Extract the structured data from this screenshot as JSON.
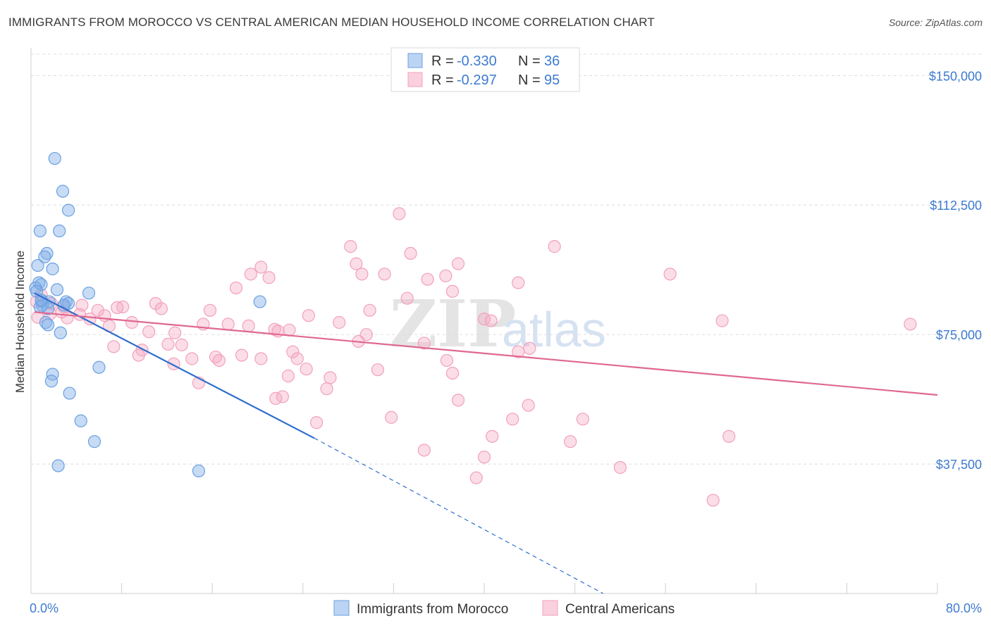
{
  "title": "IMMIGRANTS FROM MOROCCO VS CENTRAL AMERICAN MEDIAN HOUSEHOLD INCOME CORRELATION CHART",
  "source": "Source: ZipAtlas.com",
  "watermark": {
    "zip": "ZIP",
    "atlas": "atlas"
  },
  "chart_data": {
    "type": "scatter",
    "ylabel": "Median Household Income",
    "xlim": [
      0,
      80
    ],
    "ylim": [
      0,
      157000
    ],
    "x_tick_labels": {
      "min": "0.0%",
      "max": "80.0%"
    },
    "y_ticks": [
      {
        "value": 37500,
        "label": "$37,500"
      },
      {
        "value": 75000,
        "label": "$75,000"
      },
      {
        "value": 112500,
        "label": "$112,500"
      },
      {
        "value": 150000,
        "label": "$150,000"
      }
    ],
    "grid": true,
    "legend_position": "top-center",
    "series": [
      {
        "name": "Immigrants from Morocco",
        "color": "#6aa0e0",
        "line_color": "#2f6fcc",
        "R": "-0.330",
        "N": "36",
        "trend": {
          "x0": 0.3,
          "y0": 87000,
          "x1": 25.0,
          "y1": 45000,
          "dash_to_x": 50.5,
          "dash_to_y": 0
        },
        "points": [
          [
            2.1,
            126000
          ],
          [
            2.8,
            116500
          ],
          [
            3.3,
            111000
          ],
          [
            0.8,
            105000
          ],
          [
            2.5,
            105000
          ],
          [
            1.4,
            98500
          ],
          [
            1.2,
            97500
          ],
          [
            0.6,
            95000
          ],
          [
            1.9,
            94000
          ],
          [
            0.7,
            90000
          ],
          [
            0.9,
            89500
          ],
          [
            2.3,
            88000
          ],
          [
            0.4,
            88500
          ],
          [
            5.1,
            87000
          ],
          [
            0.5,
            87500
          ],
          [
            1.0,
            84500
          ],
          [
            1.6,
            84500
          ],
          [
            3.1,
            84500
          ],
          [
            3.3,
            84000
          ],
          [
            1.0,
            83500
          ],
          [
            0.8,
            83000
          ],
          [
            1.5,
            82500
          ],
          [
            20.2,
            84500
          ],
          [
            1.3,
            78500
          ],
          [
            1.5,
            77800
          ],
          [
            2.6,
            75500
          ],
          [
            6.0,
            65500
          ],
          [
            1.9,
            63500
          ],
          [
            1.8,
            61500
          ],
          [
            3.4,
            58000
          ],
          [
            4.4,
            50000
          ],
          [
            5.6,
            44000
          ],
          [
            2.4,
            37000
          ],
          [
            14.8,
            35500
          ],
          [
            0.9,
            85000
          ],
          [
            2.9,
            83500
          ]
        ]
      },
      {
        "name": "Central Americans",
        "color": "#f2a0bc",
        "line_color": "#e06890",
        "R": "-0.297",
        "N": "95",
        "trend": {
          "x0": 0.3,
          "y0": 81500,
          "x1": 80.0,
          "y1": 57500
        },
        "points": [
          [
            32.5,
            110000
          ],
          [
            28.2,
            100500
          ],
          [
            46.2,
            100500
          ],
          [
            33.5,
            98500
          ],
          [
            28.7,
            95500
          ],
          [
            37.7,
            95500
          ],
          [
            20.3,
            94500
          ],
          [
            19.4,
            92500
          ],
          [
            21.0,
            91500
          ],
          [
            29.2,
            92500
          ],
          [
            31.2,
            92500
          ],
          [
            35.0,
            91000
          ],
          [
            36.6,
            92000
          ],
          [
            43.0,
            90000
          ],
          [
            56.4,
            92500
          ],
          [
            18.1,
            88500
          ],
          [
            37.2,
            87500
          ],
          [
            33.2,
            85500
          ],
          [
            11.0,
            84000
          ],
          [
            4.5,
            83500
          ],
          [
            5.9,
            82000
          ],
          [
            8.1,
            83000
          ],
          [
            7.6,
            82800
          ],
          [
            11.5,
            82500
          ],
          [
            15.8,
            82000
          ],
          [
            29.9,
            82000
          ],
          [
            24.5,
            80500
          ],
          [
            40.0,
            79500
          ],
          [
            6.5,
            80500
          ],
          [
            8.9,
            78500
          ],
          [
            15.2,
            78000
          ],
          [
            17.4,
            78000
          ],
          [
            19.2,
            77500
          ],
          [
            21.5,
            76500
          ],
          [
            21.8,
            76000
          ],
          [
            27.2,
            78500
          ],
          [
            40.6,
            79000
          ],
          [
            61.0,
            79000
          ],
          [
            77.6,
            78000
          ],
          [
            6.9,
            77500
          ],
          [
            10.4,
            75800
          ],
          [
            12.7,
            75500
          ],
          [
            22.8,
            76300
          ],
          [
            29.6,
            75000
          ],
          [
            28.9,
            73000
          ],
          [
            34.7,
            72500
          ],
          [
            12.1,
            72200
          ],
          [
            13.3,
            72000
          ],
          [
            7.3,
            71500
          ],
          [
            9.8,
            70500
          ],
          [
            23.1,
            70000
          ],
          [
            43.0,
            70000
          ],
          [
            44.0,
            71000
          ],
          [
            9.5,
            69000
          ],
          [
            14.2,
            68000
          ],
          [
            16.3,
            68500
          ],
          [
            18.6,
            69000
          ],
          [
            20.3,
            68000
          ],
          [
            23.5,
            68000
          ],
          [
            12.6,
            66500
          ],
          [
            16.6,
            67500
          ],
          [
            36.7,
            67500
          ],
          [
            24.3,
            65000
          ],
          [
            30.6,
            64800
          ],
          [
            37.2,
            63800
          ],
          [
            22.7,
            63000
          ],
          [
            26.4,
            62500
          ],
          [
            14.8,
            61000
          ],
          [
            26.1,
            59300
          ],
          [
            22.2,
            57000
          ],
          [
            21.6,
            56500
          ],
          [
            37.7,
            56000
          ],
          [
            43.9,
            54500
          ],
          [
            31.8,
            51000
          ],
          [
            42.5,
            50500
          ],
          [
            48.7,
            50500
          ],
          [
            25.2,
            49500
          ],
          [
            40.7,
            45500
          ],
          [
            61.6,
            45500
          ],
          [
            47.6,
            44000
          ],
          [
            34.7,
            41500
          ],
          [
            40.0,
            39500
          ],
          [
            52.0,
            36500
          ],
          [
            39.3,
            33500
          ],
          [
            60.2,
            27000
          ],
          [
            0.6,
            80000
          ],
          [
            1.7,
            81000
          ],
          [
            2.7,
            81500
          ],
          [
            3.2,
            79800
          ],
          [
            0.9,
            86500
          ],
          [
            1.8,
            84000
          ],
          [
            2.9,
            83000
          ],
          [
            0.5,
            84500
          ],
          [
            4.3,
            80800
          ],
          [
            5.2,
            79500
          ]
        ]
      }
    ]
  }
}
